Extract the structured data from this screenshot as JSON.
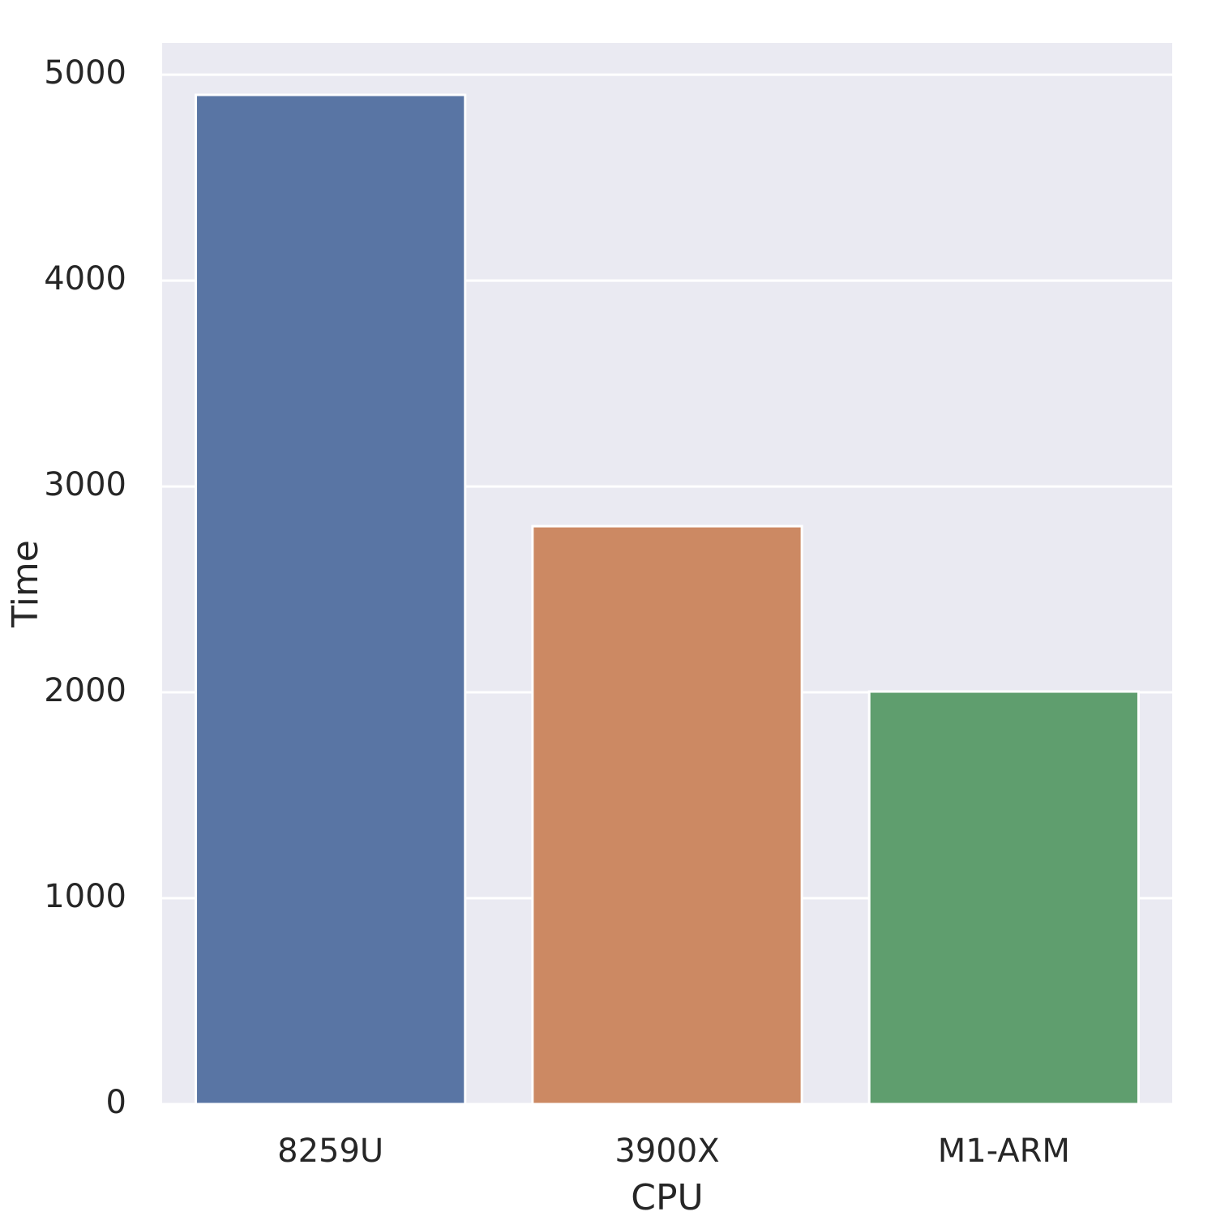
{
  "chart_data": {
    "type": "bar",
    "x_label": "CPU",
    "y_label": "Time",
    "categories": [
      "8259U",
      "3900X",
      "M1-ARM"
    ],
    "values": [
      4902,
      2807,
      2004
    ],
    "colors": [
      "#5975a4",
      "#cc8963",
      "#5f9e6e"
    ],
    "ylim": [
      0,
      5154
    ],
    "yticks": [
      0,
      1000,
      2000,
      3000,
      4000,
      5000
    ],
    "grid": true
  }
}
